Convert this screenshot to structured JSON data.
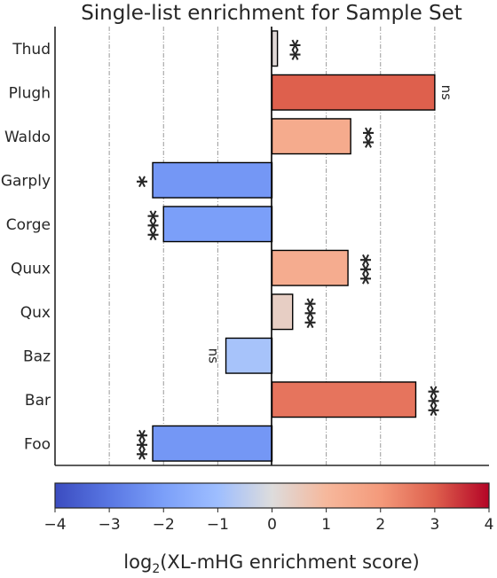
{
  "chart_data": {
    "type": "bar",
    "orientation": "horizontal",
    "title": "Single-list enrichment for Sample Set",
    "xlabel_prefix": "log",
    "xlabel_subscript": "2",
    "xlabel_suffix": "(XL-mHG enrichment score)",
    "xlim": [
      -4,
      4
    ],
    "xticks": [
      -4,
      -3,
      -2,
      -1,
      0,
      1,
      2,
      3,
      4
    ],
    "xtick_labels": [
      "−4",
      "−3",
      "−2",
      "−1",
      "0",
      "1",
      "2",
      "3",
      "4"
    ],
    "grid": "vertical dashed",
    "categories": [
      "Thud",
      "Plugh",
      "Waldo",
      "Garply",
      "Corge",
      "Quux",
      "Qux",
      "Baz",
      "Bar",
      "Foo"
    ],
    "values": [
      0.1,
      3.0,
      1.45,
      -2.2,
      -2.0,
      1.4,
      0.38,
      -0.85,
      2.65,
      -2.2
    ],
    "significance": [
      "**",
      "ns",
      "**",
      "*",
      "***",
      "***",
      "***",
      "ns",
      "***",
      "***"
    ],
    "colormap": "coolwarm",
    "colorbar_range": [
      -4,
      4
    ],
    "colorbar_ticks": [
      -4,
      -3,
      -2,
      -1,
      0,
      1,
      2,
      3,
      4
    ]
  }
}
